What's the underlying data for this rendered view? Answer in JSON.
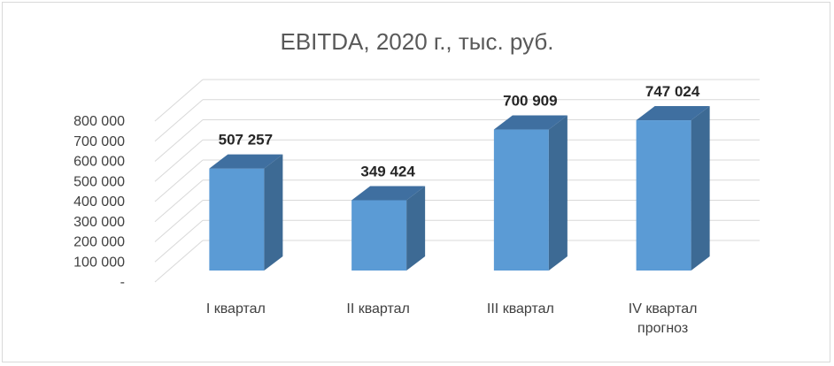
{
  "chart_data": {
    "type": "bar",
    "title": "EBITDA, 2020 г., тыс. руб.",
    "xlabel": "",
    "ylabel": "",
    "categories": [
      [
        "I квартал"
      ],
      [
        "II квартал"
      ],
      [
        "III квартал"
      ],
      [
        "IV квартал",
        "прогноз"
      ]
    ],
    "values": [
      507257,
      349424,
      700909,
      747024
    ],
    "value_labels": [
      "507 257",
      "349 424",
      "700 909",
      "747 024"
    ],
    "ylim": [
      0,
      800000
    ],
    "yticks": [
      0,
      100000,
      200000,
      300000,
      400000,
      500000,
      600000,
      700000,
      800000
    ],
    "ytick_labels": [
      "-",
      "100 000",
      "200 000",
      "300 000",
      "400 000",
      "500 000",
      "600 000",
      "700 000",
      "800 000"
    ],
    "grid": true,
    "legend": "none",
    "style": "3d-column",
    "colors": {
      "front": "#5b9bd5",
      "side": "#3d6a94",
      "top": "#3f6fa0",
      "grid": "#d9d9d9"
    }
  }
}
